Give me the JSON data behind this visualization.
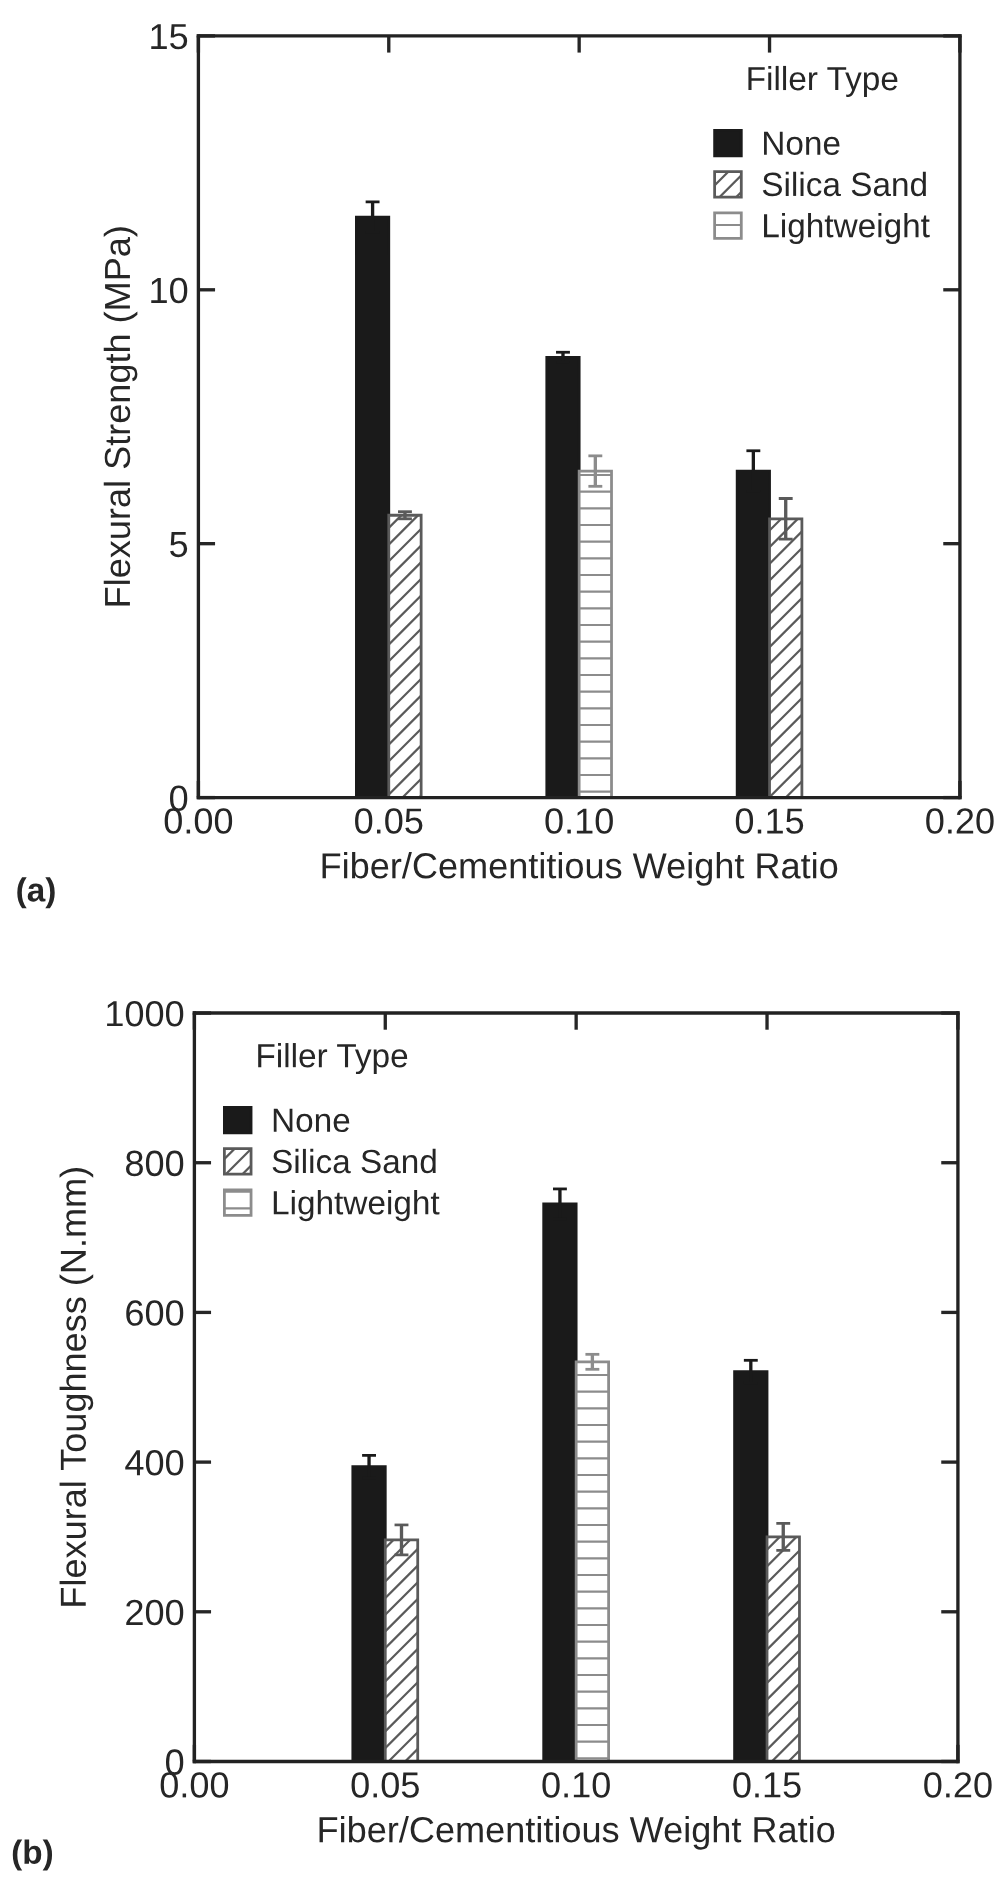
{
  "chart_data": [
    {
      "type": "bar",
      "x": [
        0.05,
        0.1,
        0.15
      ],
      "xlabel": "Fiber/Cementitious Weight Ratio",
      "ylabel": "Flexural Strength (MPa)",
      "legend_title": "Filler Type",
      "legend": "top right",
      "xlim": [
        0.0,
        0.2
      ],
      "xticks": [
        {
          "value": 0.0,
          "label": "0.00"
        },
        {
          "value": 0.05,
          "label": "0.05"
        },
        {
          "value": 0.1,
          "label": "0.10"
        },
        {
          "value": 0.15,
          "label": "0.15"
        },
        {
          "value": 0.2,
          "label": "0.20"
        }
      ],
      "ylim": [
        0,
        15
      ],
      "yticks": [
        0,
        5,
        10,
        15
      ],
      "annotations": [
        "(a)"
      ],
      "series": [
        {
          "name": "None",
          "color": "#1a1a1a",
          "values": [
            11.43,
            8.67,
            6.43
          ],
          "errors": [
            0.3,
            0.1,
            0.4
          ]
        },
        {
          "name": "Silica Sand",
          "color": "#5a5a5a",
          "values": [
            5.56,
            null,
            5.49
          ],
          "errors": [
            0.07,
            null,
            0.4
          ]
        },
        {
          "name": "Lightweight",
          "color": "#8c8c8c",
          "values": [
            null,
            6.43,
            null
          ],
          "errors": [
            null,
            0.3,
            null
          ]
        }
      ]
    },
    {
      "type": "bar",
      "x": [
        0.05,
        0.1,
        0.15
      ],
      "xlabel": "Fiber/Cementitious Weight Ratio",
      "ylabel": "Flexural Toughness (N.mm)",
      "legend_title": "Filler Type",
      "legend": "top left",
      "xlim": [
        0.0,
        0.2
      ],
      "xticks": [
        {
          "value": 0.0,
          "label": "0.00"
        },
        {
          "value": 0.05,
          "label": "0.05"
        },
        {
          "value": 0.1,
          "label": "0.10"
        },
        {
          "value": 0.15,
          "label": "0.15"
        },
        {
          "value": 0.2,
          "label": "0.20"
        }
      ],
      "ylim": [
        0,
        1000
      ],
      "yticks": [
        0,
        200,
        400,
        600,
        800,
        1000
      ],
      "annotations": [
        "(b)"
      ],
      "series": [
        {
          "name": "None",
          "color": "#1a1a1a",
          "values": [
            394,
            745,
            521
          ],
          "errors": [
            15,
            20,
            15
          ]
        },
        {
          "name": "Silica Sand",
          "color": "#5a5a5a",
          "values": [
            296,
            null,
            300
          ],
          "errors": [
            20,
            null,
            18
          ]
        },
        {
          "name": "Lightweight",
          "color": "#8c8c8c",
          "values": [
            null,
            534,
            null
          ],
          "errors": [
            null,
            10,
            null
          ]
        }
      ]
    }
  ]
}
